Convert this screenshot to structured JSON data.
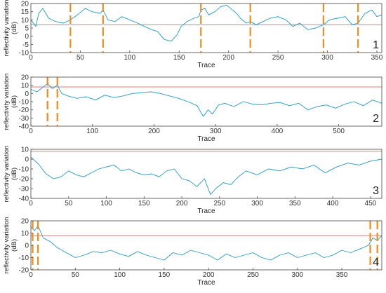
{
  "colors": {
    "series": "#1f9ac9",
    "reference": "#e8787a",
    "markers": "#f08c1c",
    "axes": "#444444"
  },
  "chart_data": [
    {
      "type": "line",
      "panel_label": "1",
      "xlabel": "Trace",
      "ylabel_lines": [
        "reflectivity variation",
        "(dB)"
      ],
      "xlim": [
        0,
        355
      ],
      "ylim": [
        -10,
        20
      ],
      "xticks": [
        0,
        50,
        100,
        150,
        200,
        250,
        300,
        350
      ],
      "yticks": [
        -10,
        -5,
        0,
        5,
        10,
        15,
        20
      ],
      "reference_y": 7,
      "markers_x": [
        40,
        73,
        172,
        222,
        296,
        331
      ],
      "series": [
        {
          "x": [
            0,
            5,
            8,
            12,
            18,
            25,
            33,
            40,
            47,
            55,
            62,
            70,
            73,
            78,
            85,
            92,
            100,
            108,
            115,
            122,
            128,
            135,
            142,
            148,
            152,
            158,
            165,
            170,
            172,
            176,
            180,
            186,
            192,
            198,
            204,
            208,
            212,
            218,
            222,
            228,
            235,
            242,
            250,
            258,
            265,
            272,
            280,
            288,
            296,
            302,
            310,
            318,
            325,
            331,
            338,
            345,
            350,
            355
          ],
          "y": [
            10,
            6,
            14,
            17,
            11,
            9,
            8,
            10,
            13,
            17,
            15,
            14,
            16,
            10,
            9,
            12,
            10,
            8,
            6,
            4,
            3,
            -2,
            -3,
            1,
            6,
            9,
            11,
            12,
            16,
            17,
            13,
            15,
            18,
            19,
            16,
            14,
            11,
            8,
            9,
            7,
            9,
            11,
            12,
            10,
            6,
            8,
            4,
            5,
            7,
            10,
            11,
            12,
            7,
            8,
            14,
            16,
            12,
            13
          ]
        }
      ]
    },
    {
      "type": "line",
      "panel_label": "2",
      "xlabel": "Trace",
      "ylabel_lines": [
        "reflectivity variation",
        "(dB)"
      ],
      "xlim": [
        0,
        570
      ],
      "ylim": [
        -40,
        20
      ],
      "xticks": [
        0,
        100,
        200,
        300,
        400,
        500
      ],
      "yticks": [
        -40,
        -30,
        -20,
        -10,
        0,
        10,
        20
      ],
      "reference_y": 8,
      "markers_x": [
        27,
        43
      ],
      "series": [
        {
          "x": [
            0,
            10,
            20,
            27,
            35,
            43,
            50,
            60,
            75,
            90,
            105,
            120,
            135,
            150,
            165,
            180,
            195,
            210,
            225,
            240,
            255,
            270,
            280,
            288,
            295,
            305,
            315,
            330,
            345,
            360,
            375,
            390,
            405,
            420,
            435,
            450,
            465,
            480,
            495,
            510,
            525,
            540,
            555,
            570
          ],
          "y": [
            5,
            2,
            8,
            12,
            6,
            10,
            0,
            -3,
            -6,
            -4,
            -8,
            -2,
            -5,
            -3,
            0,
            1,
            2,
            0,
            -3,
            -6,
            -10,
            -15,
            -28,
            -20,
            -25,
            -14,
            -12,
            -16,
            -10,
            -13,
            -14,
            -12,
            -11,
            -15,
            -12,
            -20,
            -16,
            -14,
            -18,
            -13,
            -10,
            -15,
            -8,
            -12
          ]
        }
      ]
    },
    {
      "type": "line",
      "panel_label": "3",
      "xlabel": "Trace",
      "ylabel_lines": [
        "reflectivity variation",
        "(dB)"
      ],
      "xlim": [
        0,
        465
      ],
      "ylim": [
        -40,
        10
      ],
      "xticks": [
        0,
        50,
        100,
        150,
        200,
        250,
        300,
        350,
        400,
        450
      ],
      "yticks": [
        -40,
        -30,
        -20,
        -10,
        0,
        10
      ],
      "reference_y": 8,
      "markers_x": [],
      "series": [
        {
          "x": [
            0,
            10,
            20,
            30,
            40,
            50,
            60,
            70,
            80,
            90,
            100,
            110,
            120,
            130,
            140,
            150,
            160,
            170,
            180,
            190,
            200,
            210,
            220,
            230,
            238,
            245,
            255,
            265,
            275,
            285,
            300,
            315,
            330,
            345,
            360,
            375,
            390,
            405,
            420,
            435,
            450,
            465
          ],
          "y": [
            2,
            -5,
            -15,
            -20,
            -18,
            -12,
            -16,
            -18,
            -14,
            -10,
            -8,
            -6,
            -12,
            -10,
            -14,
            -16,
            -15,
            -18,
            -12,
            -10,
            -20,
            -22,
            -28,
            -20,
            -36,
            -30,
            -24,
            -26,
            -18,
            -12,
            -16,
            -10,
            -12,
            -8,
            -10,
            -6,
            -14,
            -8,
            -4,
            -6,
            -2,
            0
          ]
        }
      ]
    },
    {
      "type": "line",
      "panel_label": "4",
      "xlabel": "Trace",
      "ylabel_lines": [
        "reflectivity variation",
        "(dB)"
      ],
      "xlim": [
        0,
        395
      ],
      "ylim": [
        -20,
        20
      ],
      "xticks": [
        0,
        50,
        100,
        150,
        200,
        250,
        300,
        350
      ],
      "yticks": [
        -20,
        -10,
        0,
        10,
        20
      ],
      "reference_y": 8,
      "markers_x": [
        2,
        8,
        382,
        390
      ],
      "series": [
        {
          "x": [
            0,
            4,
            8,
            14,
            22,
            30,
            40,
            50,
            60,
            70,
            80,
            90,
            100,
            110,
            120,
            130,
            140,
            150,
            160,
            170,
            180,
            190,
            200,
            210,
            220,
            230,
            240,
            250,
            260,
            270,
            280,
            290,
            300,
            310,
            320,
            330,
            340,
            350,
            360,
            370,
            380,
            385,
            390,
            395
          ],
          "y": [
            15,
            12,
            16,
            6,
            3,
            -2,
            -6,
            -10,
            -8,
            -5,
            -6,
            -4,
            -7,
            -9,
            -5,
            -8,
            -10,
            -12,
            -6,
            -8,
            -4,
            -6,
            -8,
            -12,
            -7,
            -10,
            -8,
            -6,
            -10,
            -12,
            -8,
            -6,
            -10,
            -8,
            -6,
            -10,
            -8,
            -4,
            -6,
            -3,
            0,
            6,
            4,
            8
          ]
        }
      ]
    }
  ]
}
